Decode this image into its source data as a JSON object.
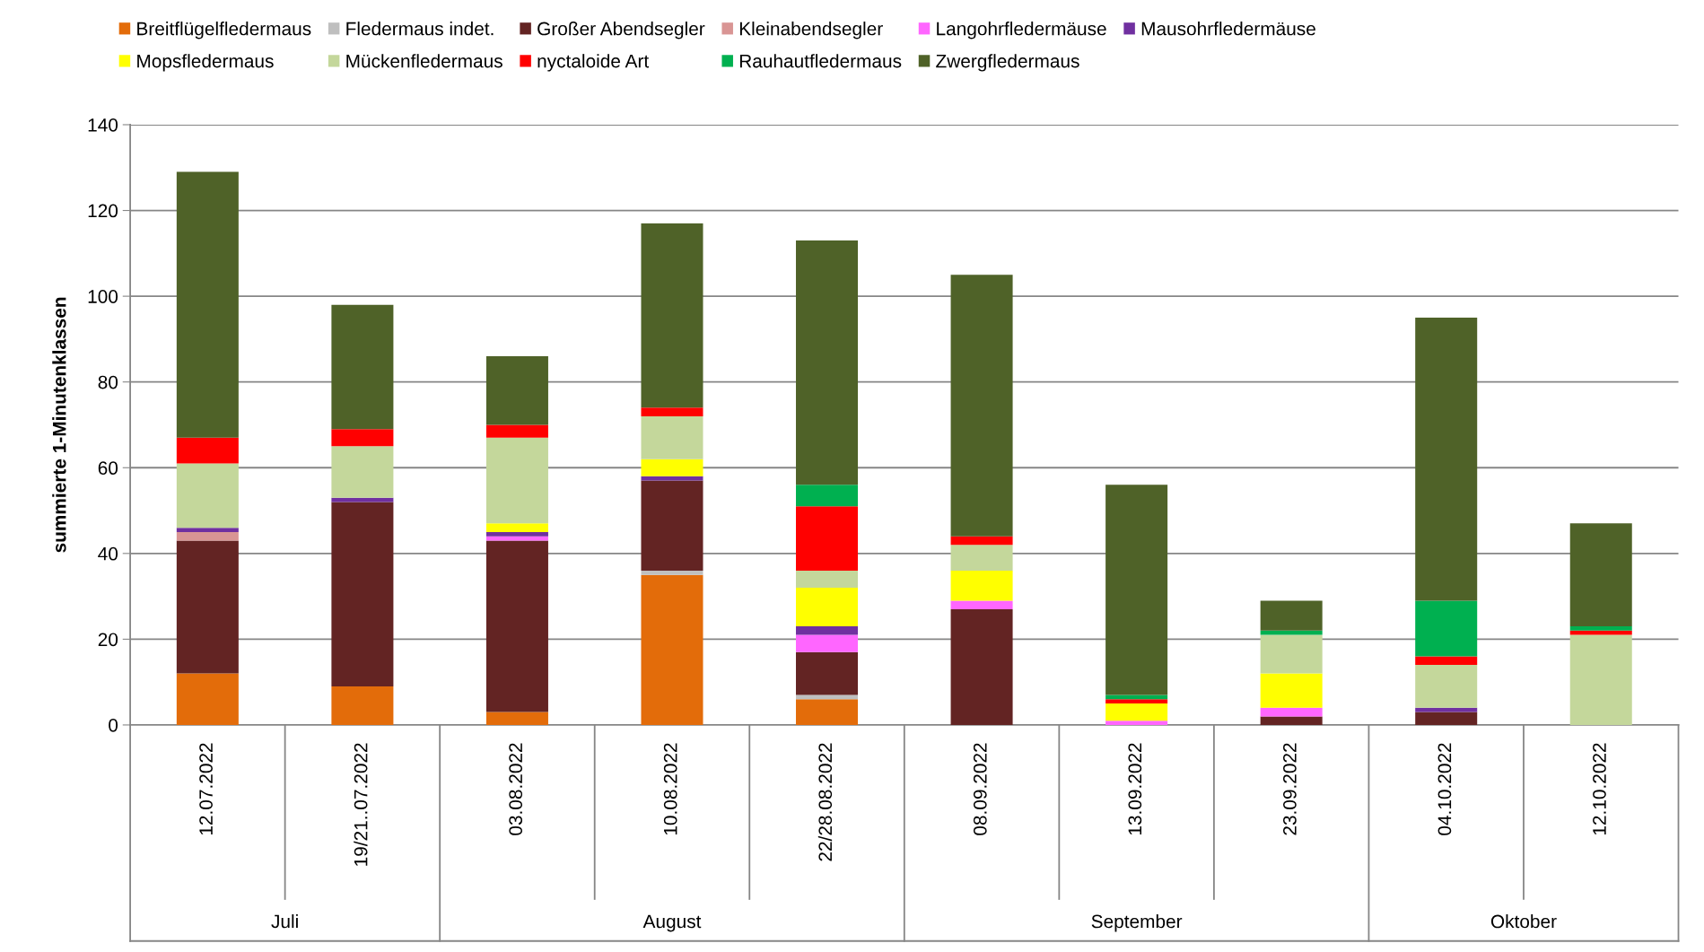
{
  "chart_data": {
    "type": "bar",
    "stacked": true,
    "ylabel": "summierte 1-Minutenklassen",
    "categories": [
      "12.07.2022",
      "19/21..07.2022",
      "03.08.2022",
      "10.08.2022",
      "22/28.08.2022",
      "08.09.2022",
      "13.09.2022",
      "23.09.2022",
      "04.10.2022",
      "12.10.2022"
    ],
    "annotations": [
      "Juli",
      "August",
      "September",
      "Oktober"
    ],
    "ylim": [
      0,
      140
    ],
    "yticks": [
      0,
      20,
      40,
      60,
      80,
      100,
      120,
      140
    ],
    "grid": "y",
    "legend": "top",
    "series": [
      {
        "name": "Breitflügelfledermaus",
        "color": "#e36c0a",
        "values": [
          12,
          9,
          3,
          35,
          6,
          0,
          0,
          0,
          0,
          0
        ]
      },
      {
        "name": "Fledermaus indet.",
        "color": "#bfbfbf",
        "values": [
          0,
          0,
          0,
          1,
          1,
          0,
          0,
          0,
          0,
          0
        ]
      },
      {
        "name": "Großer Abendsegler",
        "color": "#632423",
        "values": [
          31,
          43,
          40,
          21,
          10,
          27,
          0,
          2,
          3,
          0
        ]
      },
      {
        "name": "Kleinabendsegler",
        "color": "#d99594",
        "values": [
          2,
          0,
          0,
          0,
          0,
          0,
          0,
          0,
          0,
          0
        ]
      },
      {
        "name": "Langohrfledermäuse",
        "color": "#ff66ff",
        "values": [
          0,
          0,
          1,
          0,
          4,
          2,
          1,
          2,
          0,
          0
        ]
      },
      {
        "name": "Mausohrfledermäuse",
        "color": "#7030a0",
        "values": [
          1,
          1,
          1,
          1,
          2,
          0,
          0,
          0,
          1,
          0
        ]
      },
      {
        "name": "Mopsfledermaus",
        "color": "#ffff00",
        "values": [
          0,
          0,
          2,
          4,
          9,
          7,
          4,
          8,
          0,
          0
        ]
      },
      {
        "name": "Mückenfledermaus",
        "color": "#c4d79b",
        "values": [
          15,
          12,
          20,
          10,
          4,
          6,
          0,
          9,
          10,
          21
        ]
      },
      {
        "name": "nyctaloide Art",
        "color": "#ff0000",
        "values": [
          6,
          4,
          3,
          2,
          15,
          2,
          1,
          0,
          2,
          1
        ]
      },
      {
        "name": "Rauhautfledermaus",
        "color": "#00b050",
        "values": [
          0,
          0,
          0,
          0,
          5,
          0,
          1,
          1,
          13,
          1
        ]
      },
      {
        "name": "Zwergfledermaus",
        "color": "#4f6228",
        "values": [
          62,
          29,
          16,
          43,
          57,
          61,
          49,
          7,
          66,
          24
        ]
      }
    ]
  }
}
